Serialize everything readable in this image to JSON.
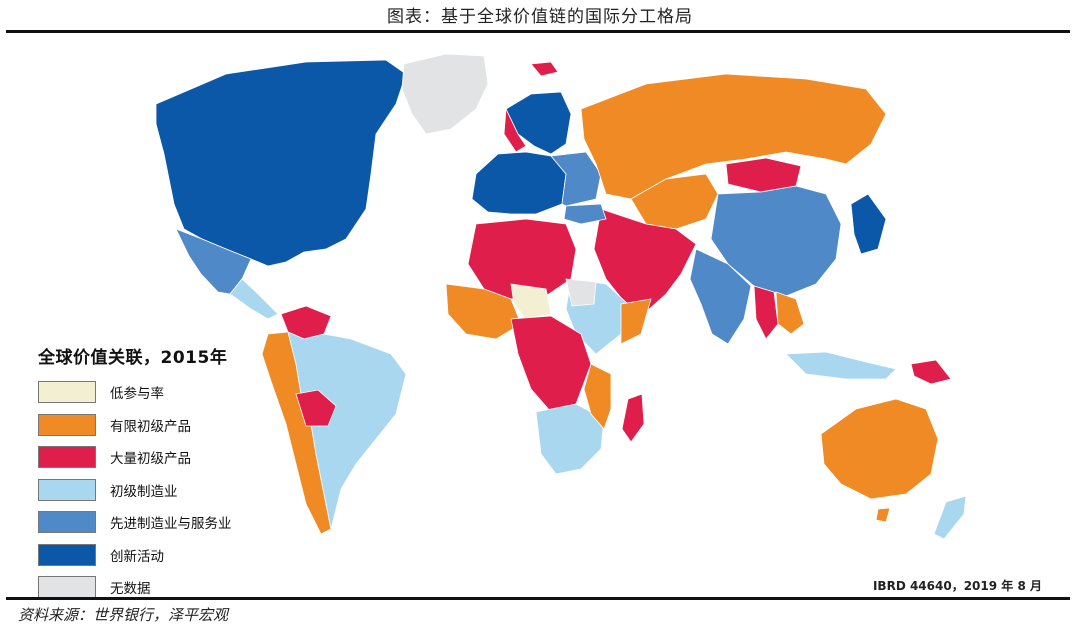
{
  "title": "图表：基于全球价值链的国际分工格局",
  "legend": {
    "title": "全球价值关联，2015年",
    "items": [
      {
        "label": "低参与率",
        "color": "#f2efd2"
      },
      {
        "label": "有限初级产品",
        "color": "#f08a24"
      },
      {
        "label": "大量初级产品",
        "color": "#df1e4b"
      },
      {
        "label": "初级制造业",
        "color": "#a9d7f0"
      },
      {
        "label": "先进制造业与服务业",
        "color": "#4f89c7"
      },
      {
        "label": "创新活动",
        "color": "#0c58a8"
      },
      {
        "label": "无数据",
        "color": "#e2e3e5"
      }
    ]
  },
  "credit": "IBRD 44640，2019 年 8 月",
  "source": "资料来源：世界银行，泽平宏观"
}
